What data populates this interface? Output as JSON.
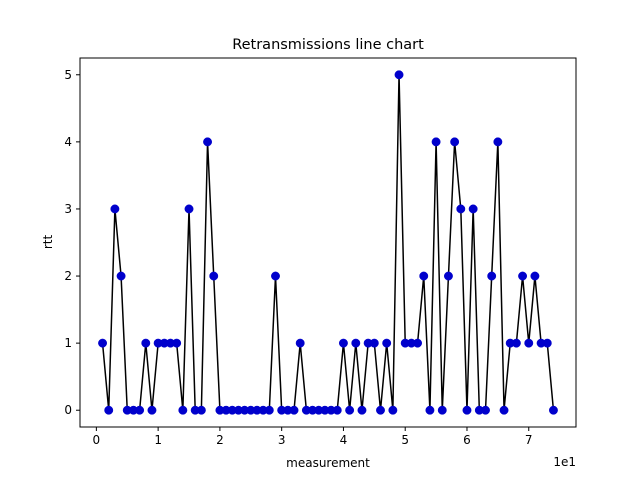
{
  "chart_data": {
    "type": "line",
    "title": "Retransmissions line chart",
    "xlabel": "measurement",
    "ylabel": "rtt",
    "x_offset_text": "1e1",
    "x_tick_values": [
      0,
      10,
      20,
      30,
      40,
      50,
      60,
      70
    ],
    "x_tick_labels": [
      "0",
      "1",
      "2",
      "3",
      "4",
      "5",
      "6",
      "7"
    ],
    "y_tick_values": [
      0,
      1,
      2,
      3,
      4,
      5
    ],
    "y_tick_labels": [
      "0",
      "1",
      "2",
      "3",
      "4",
      "5"
    ],
    "xlim": [
      -2.65,
      77.65
    ],
    "ylim": [
      -0.25,
      5.25
    ],
    "grid": false,
    "x": [
      1,
      2,
      3,
      4,
      5,
      6,
      7,
      8,
      9,
      10,
      11,
      12,
      13,
      14,
      15,
      16,
      17,
      18,
      19,
      20,
      21,
      22,
      23,
      24,
      25,
      26,
      27,
      28,
      29,
      30,
      31,
      32,
      33,
      34,
      35,
      36,
      37,
      38,
      39,
      40,
      41,
      42,
      43,
      44,
      45,
      46,
      47,
      48,
      49,
      50,
      51,
      52,
      53,
      54,
      55,
      56,
      57,
      58,
      59,
      60,
      61,
      62,
      63,
      64,
      65,
      66,
      67,
      68,
      69,
      70,
      71,
      72,
      73,
      74
    ],
    "values": [
      1,
      0,
      3,
      2,
      0,
      0,
      0,
      1,
      0,
      1,
      1,
      1,
      1,
      0,
      3,
      0,
      0,
      4,
      2,
      0,
      0,
      0,
      0,
      0,
      0,
      0,
      0,
      0,
      2,
      0,
      0,
      0,
      1,
      0,
      0,
      0,
      0,
      0,
      0,
      1,
      0,
      1,
      0,
      1,
      1,
      0,
      1,
      0,
      5,
      1,
      1,
      1,
      2,
      0,
      4,
      0,
      2,
      4,
      3,
      0,
      3,
      0,
      0,
      2,
      4,
      0,
      1,
      1,
      2,
      1,
      2,
      1,
      1,
      0
    ],
    "line_color": "#000000",
    "marker_color": "#0000cc"
  }
}
